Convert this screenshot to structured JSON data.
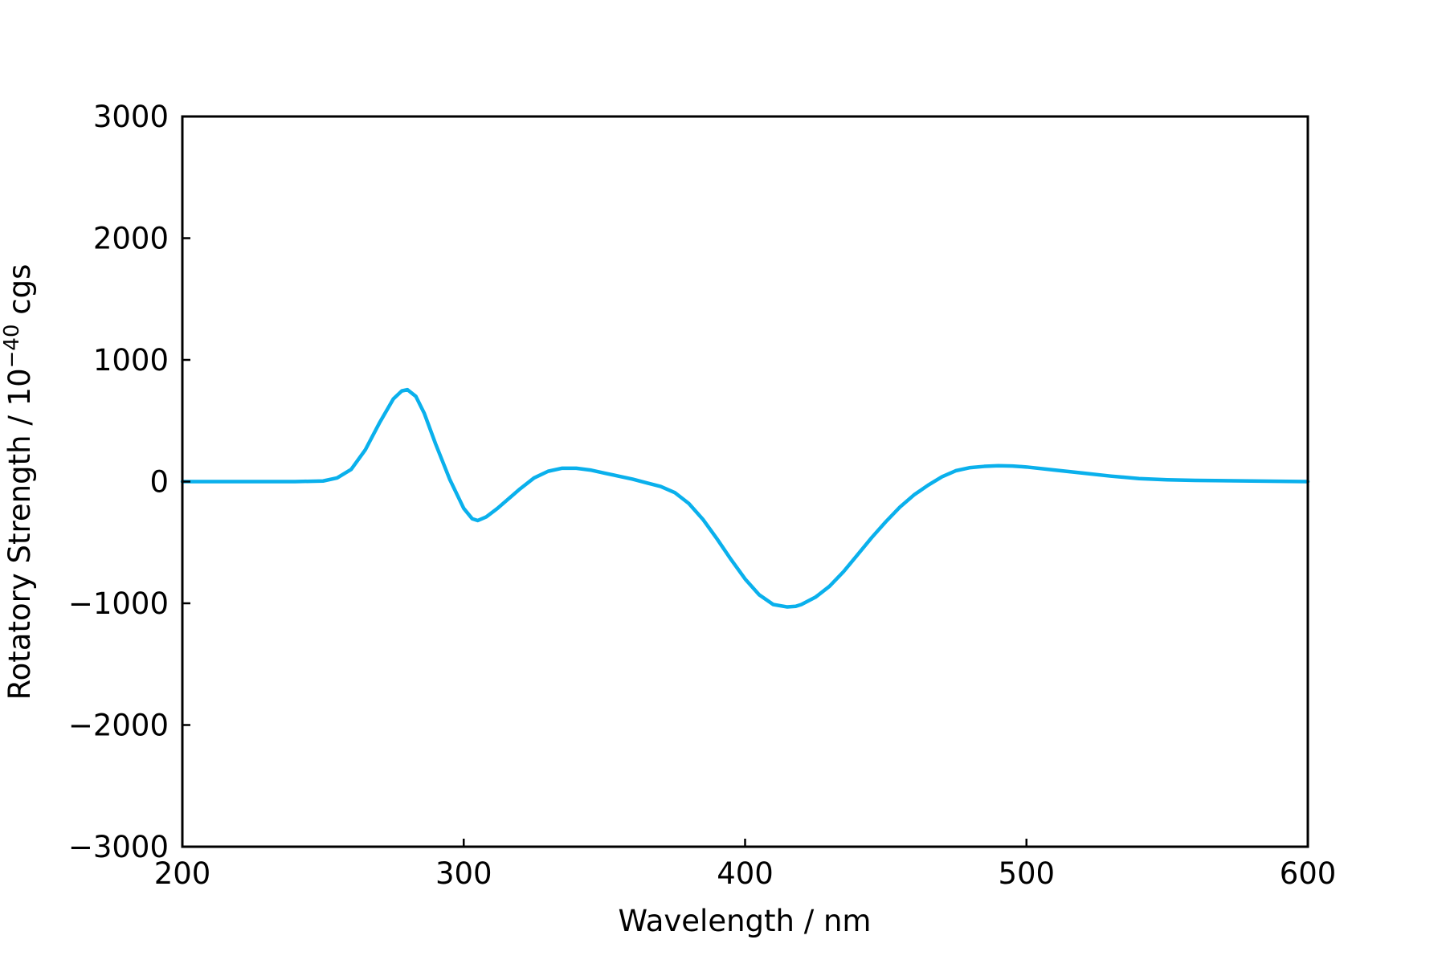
{
  "chart_data": {
    "type": "line",
    "title": "",
    "xlabel": "Wavelength / nm",
    "ylabel": {
      "prefix": "Rotatory Strength / 10",
      "superscript": "−40",
      "suffix": " cgs"
    },
    "xlim": [
      200,
      600
    ],
    "ylim": [
      -3000,
      3000
    ],
    "xticks": [
      200,
      300,
      400,
      500,
      600
    ],
    "xtick_labels": [
      "200",
      "300",
      "400",
      "500",
      "600"
    ],
    "yticks": [
      3000,
      2000,
      1000,
      0,
      -1000,
      -2000,
      -3000
    ],
    "ytick_labels": [
      "3000",
      "2000",
      "1000",
      "0",
      "−1000",
      "−2000",
      "−3000"
    ],
    "grid": false,
    "legend": "none",
    "line_color": "#0ab0ec",
    "series": [
      {
        "x": [
          200,
          240,
          250,
          255,
          260,
          265,
          270,
          275,
          278,
          280,
          283,
          286,
          290,
          295,
          300,
          303,
          305,
          308,
          312,
          316,
          320,
          325,
          330,
          335,
          340,
          345,
          350,
          355,
          360,
          365,
          370,
          375,
          380,
          385,
          390,
          395,
          400,
          405,
          410,
          415,
          418,
          420,
          425,
          430,
          435,
          440,
          445,
          450,
          455,
          460,
          465,
          470,
          475,
          480,
          485,
          490,
          495,
          500,
          510,
          520,
          530,
          540,
          550,
          560,
          580,
          600
        ],
        "y": [
          0,
          0,
          5,
          30,
          100,
          260,
          480,
          680,
          745,
          755,
          700,
          560,
          310,
          20,
          -220,
          -305,
          -320,
          -290,
          -220,
          -140,
          -60,
          30,
          85,
          110,
          110,
          95,
          70,
          45,
          20,
          -10,
          -40,
          -90,
          -180,
          -310,
          -470,
          -640,
          -800,
          -930,
          -1010,
          -1030,
          -1025,
          -1010,
          -950,
          -860,
          -740,
          -600,
          -460,
          -330,
          -210,
          -110,
          -30,
          40,
          90,
          115,
          125,
          130,
          128,
          120,
          95,
          70,
          45,
          25,
          15,
          10,
          5,
          0
        ]
      }
    ]
  }
}
